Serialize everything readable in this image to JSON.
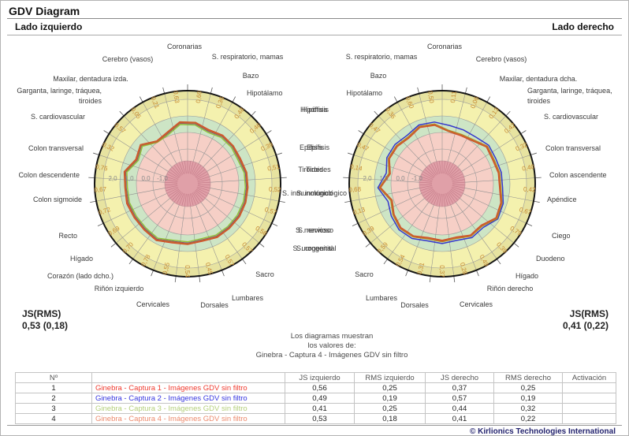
{
  "window": {
    "title": "GDV Diagram",
    "footer": "© Kirlionics Technologies International"
  },
  "panels": {
    "left": {
      "title": "Lado izquierdo",
      "js_label": "JS(RMS)",
      "js_value": "0,53 (0,18)"
    },
    "right": {
      "title": "Lado derecho",
      "js_label": "JS(RMS)",
      "js_value": "0,41 (0,22)"
    }
  },
  "note": {
    "lines": [
      "Los diagramas muestran",
      "los valores de:",
      "Ginebra - Captura 4 - Imágenes GDV sin filtro"
    ]
  },
  "table": {
    "headers": [
      "Nº",
      "",
      "JS izquierdo",
      "RMS izquierdo",
      "JS derecho",
      "RMS derecho",
      "Activación"
    ]
  },
  "captures": [
    {
      "n": "1",
      "name": "Ginebra - Captura 1 - Imágenes GDV sin filtro",
      "line_color": "#dd1f14",
      "text_color": "#f03c30",
      "js_izq": "0,56",
      "rms_izq": "0,25",
      "js_der": "0,37",
      "rms_der": "0,25",
      "activacion": ""
    },
    {
      "n": "2",
      "name": "Ginebra - Captura 2 - Imágenes GDV sin filtro",
      "line_color": "#2828cc",
      "text_color": "#3535e0",
      "js_izq": "0,49",
      "rms_izq": "0,19",
      "js_der": "0,57",
      "rms_der": "0,19",
      "activacion": ""
    },
    {
      "n": "3",
      "name": "Ginebra - Captura 3 - Imágenes GDV sin filtro",
      "line_color": "#8fbe2a",
      "text_color": "#b4cf7a",
      "js_izq": "0,41",
      "rms_izq": "0,25",
      "js_der": "0,44",
      "rms_der": "0,32",
      "activacion": ""
    },
    {
      "n": "4",
      "name": "Ginebra - Captura 4 - Imágenes GDV sin filtro",
      "line_color": "#c9652a",
      "text_color": "#ec8a6d",
      "js_izq": "0,53",
      "rms_izq": "0,18",
      "js_der": "0,41",
      "rms_der": "0,22",
      "activacion": ""
    }
  ],
  "chart_data": [
    {
      "type": "radar",
      "side": "left",
      "title": "Lado izquierdo",
      "scale": {
        "min": -1.0,
        "max": 2.0,
        "tick_labels": [
          "2,0",
          "1,0",
          "0,0",
          "-1,0"
        ],
        "tick_values": [
          2.0,
          1.0,
          0.0,
          -1.0
        ]
      },
      "zones": {
        "center_disc": "#e0a0a8",
        "hypo_pink": "#f6cfc6",
        "normal_green": "#cde5c5",
        "hyper_yellow_inner": "#f4f1ae",
        "hyper_yellow_outer": "#e7e3a0"
      },
      "sectors": [
        "Coronarias",
        "S. respiratorio, mamas",
        "Bazo",
        "Hipotálamo",
        "Hipófisis",
        "Epífisis",
        "Tiroides",
        "S. inmunológico",
        "S. nervioso",
        "S. urogenital",
        "Sacro",
        "Lumbares",
        "Dorsales",
        "Cervicales",
        "Riñón izquierdo",
        "Corazón (lado dcho.)",
        "Hígado",
        "Recto",
        "Colon sigmoide",
        "Colon descendente",
        "Colon transversal",
        "S. cardiovascular",
        "Garganta, laringe, tráquea,\ntiroides",
        "Maxilar, dentadura izda.",
        "Cerebro (vasos)"
      ],
      "sector_values": [
        0.6,
        0.36,
        0.48,
        0.46,
        0.39,
        0.51,
        0.52,
        0.57,
        0.58,
        0.57,
        0.57,
        0.45,
        0.54,
        0.55,
        0.78,
        0.7,
        0.69,
        0.72,
        0.67,
        0.76,
        0.32,
        0.57,
        0.05,
        0.21,
        0.63
      ],
      "js_rms": "0,53 (0,18)",
      "series": [
        {
          "name": "Ginebra - Captura 1 - Imágenes GDV sin filtro",
          "values": [
            0.64,
            0.41,
            0.52,
            0.49,
            0.44,
            0.54,
            0.56,
            0.6,
            0.62,
            0.6,
            0.61,
            0.49,
            0.57,
            0.59,
            0.82,
            0.74,
            0.73,
            0.77,
            0.7,
            0.8,
            0.36,
            0.6,
            0.09,
            0.25,
            0.67
          ]
        },
        {
          "name": "Ginebra - Captura 2 - Imágenes GDV sin filtro",
          "values": [
            0.56,
            0.32,
            0.44,
            0.42,
            0.35,
            0.47,
            0.48,
            0.53,
            0.54,
            0.53,
            0.53,
            0.41,
            0.5,
            0.51,
            0.74,
            0.66,
            0.65,
            0.68,
            0.63,
            0.72,
            0.28,
            0.53,
            0.02,
            0.17,
            0.59
          ]
        },
        {
          "name": "Ginebra - Captura 3 - Imágenes GDV sin filtro",
          "values": [
            0.48,
            0.24,
            0.36,
            0.34,
            0.27,
            0.39,
            0.4,
            0.45,
            0.46,
            0.45,
            0.45,
            0.33,
            0.42,
            0.43,
            0.66,
            0.58,
            0.57,
            0.6,
            0.55,
            0.64,
            0.2,
            0.45,
            0.0,
            0.09,
            0.51
          ]
        },
        {
          "name": "Ginebra - Captura 4 - Imágenes GDV sin filtro",
          "values": [
            0.6,
            0.36,
            0.48,
            0.46,
            0.39,
            0.51,
            0.52,
            0.57,
            0.58,
            0.57,
            0.57,
            0.45,
            0.54,
            0.55,
            0.78,
            0.7,
            0.69,
            0.72,
            0.67,
            0.76,
            0.32,
            0.57,
            0.05,
            0.21,
            0.63
          ]
        }
      ]
    },
    {
      "type": "radar",
      "side": "right",
      "title": "Lado derecho",
      "scale": {
        "min": -1.0,
        "max": 2.0,
        "tick_labels": [
          "2,0",
          "1,0",
          "0,0",
          "-1,0"
        ],
        "tick_values": [
          2.0,
          1.0,
          0.0,
          -1.0
        ]
      },
      "zones": {
        "center_disc": "#e0a0a8",
        "hypo_pink": "#f6cfc6",
        "normal_green": "#cde5c5",
        "hyper_yellow_inner": "#f4f1ae",
        "hyper_yellow_outer": "#e7e3a0"
      },
      "sectors": [
        "Cerebro (vasos)",
        "Maxilar, dentadura dcha.",
        "Garganta, laringe, tráquea,\ntiroides",
        "S. cardiovascular",
        "Colon transversal",
        "Colon ascendente",
        "Apéndice",
        "Ciego",
        "Duodeno",
        "Hígado",
        "Riñón derecho",
        "Cervicales",
        "Dorsales",
        "Lumbares",
        "Sacro",
        "S. urogenital",
        "S. nervioso",
        "S. inmunológico",
        "Tiroides",
        "Epífisis",
        "Hipófisis",
        "Hipotálamo",
        "Bazo",
        "S. respiratorio, mamas",
        "Coronarias"
      ],
      "sector_values": [
        0.11,
        0.06,
        0.13,
        0.42,
        0.32,
        0.4,
        0.42,
        0.67,
        0.79,
        0.39,
        0.49,
        0.28,
        0.37,
        0.31,
        0.54,
        0.59,
        0.39,
        0.13,
        0.68,
        0.14,
        0.47,
        0.47,
        0.36,
        0.6,
        0.5
      ],
      "js_rms": "0,41 (0,22)",
      "series": [
        {
          "name": "Ginebra - Captura 1 - Imágenes GDV sin filtro",
          "values": [
            0.08,
            0.02,
            0.09,
            0.38,
            0.28,
            0.36,
            0.38,
            0.63,
            0.75,
            0.35,
            0.45,
            0.24,
            0.33,
            0.27,
            0.5,
            0.55,
            0.35,
            0.09,
            0.64,
            0.1,
            0.43,
            0.43,
            0.32,
            0.56,
            0.46
          ]
        },
        {
          "name": "Ginebra - Captura 2 - Imágenes GDV sin filtro",
          "values": [
            0.45,
            0.4,
            0.38,
            0.55,
            0.48,
            0.54,
            0.56,
            0.78,
            0.88,
            0.53,
            0.62,
            0.44,
            0.52,
            0.47,
            0.68,
            0.72,
            0.55,
            0.35,
            0.8,
            0.34,
            0.6,
            0.61,
            0.51,
            0.72,
            0.66
          ]
        },
        {
          "name": "Ginebra - Captura 3 - Imágenes GDV sin filtro",
          "values": [
            0.15,
            0.1,
            0.17,
            0.45,
            0.36,
            0.44,
            0.46,
            0.7,
            0.83,
            0.43,
            0.52,
            0.32,
            0.41,
            0.35,
            0.57,
            0.62,
            0.43,
            0.17,
            0.71,
            0.18,
            0.5,
            0.5,
            0.4,
            0.63,
            0.54
          ]
        },
        {
          "name": "Ginebra - Captura 4 - Imágenes GDV sin filtro",
          "values": [
            0.11,
            0.06,
            0.13,
            0.42,
            0.32,
            0.4,
            0.42,
            0.67,
            0.79,
            0.39,
            0.49,
            0.28,
            0.37,
            0.31,
            0.54,
            0.59,
            0.39,
            0.13,
            0.68,
            0.14,
            0.47,
            0.47,
            0.36,
            0.6,
            0.5
          ]
        }
      ]
    }
  ]
}
